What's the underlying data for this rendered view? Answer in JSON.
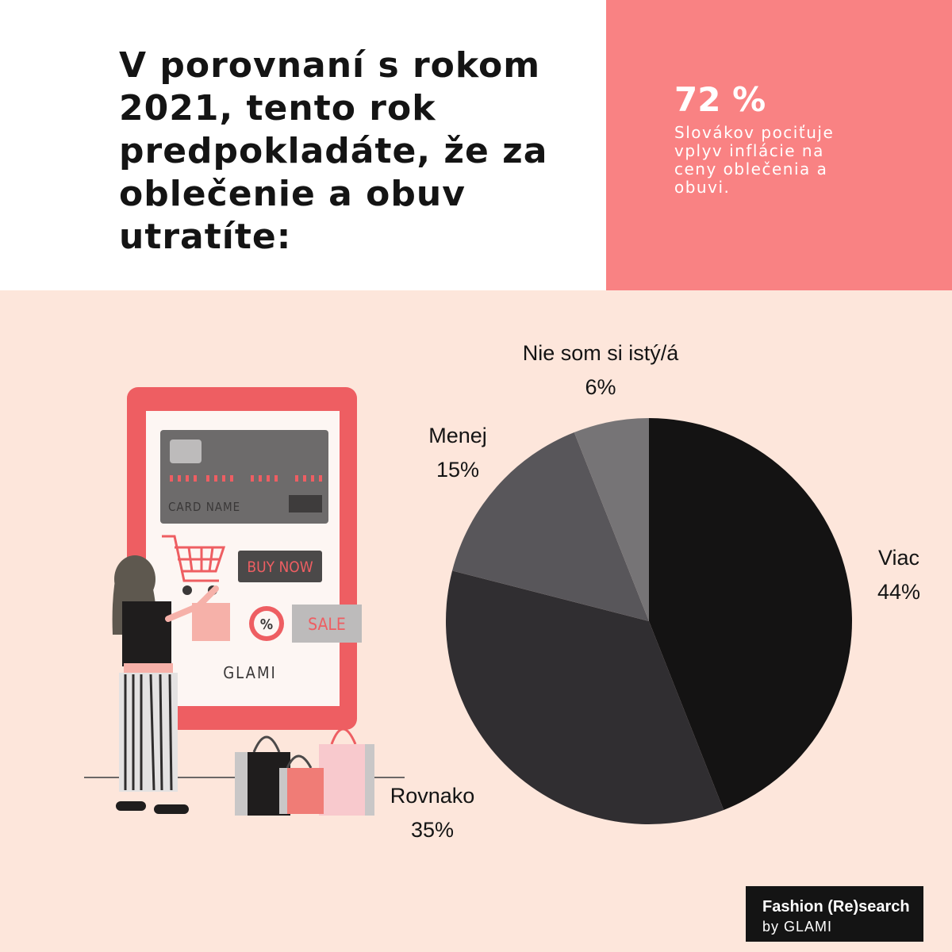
{
  "question": "V porovnaní s rokom 2021, tento rok predpokladáte, že za oblečenie a obuv utratíte:",
  "stat": {
    "value": "72 %",
    "text": "Slovákov pociťuje vplyv inflácie na ceny oblečenia a obuvi."
  },
  "chart_data": {
    "type": "pie",
    "slices": [
      {
        "label": "Viac",
        "value": 44,
        "value_label": "44%",
        "color": "#141313"
      },
      {
        "label": "Rovnako",
        "value": 35,
        "value_label": "35%",
        "color": "#302e31"
      },
      {
        "label": "Menej",
        "value": 15,
        "value_label": "15%",
        "color": "#58565a"
      },
      {
        "label": "Nie som si istý/á",
        "value": 6,
        "value_label": "6%",
        "color": "#767476"
      }
    ],
    "start": "12 o'clock",
    "direction": "clockwise"
  },
  "illustration": {
    "card_text": "CARD NAME",
    "buy_button": "BUY NOW",
    "percent_badge": "%",
    "sale_badge": "SALE",
    "logo_text": "GLAMI"
  },
  "brand": {
    "line1": "Fashion (Re)search",
    "line2": "by GLAMI"
  },
  "colors": {
    "background": "#fde6db",
    "accent": "#f98283",
    "phone_frame": "#ee5e62",
    "text": "#141414"
  }
}
